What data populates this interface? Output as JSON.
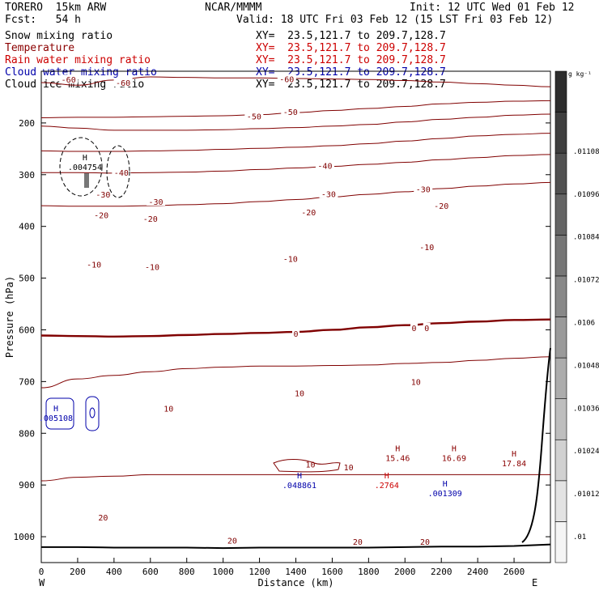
{
  "header": {
    "model": "TORERO  15km ARW",
    "center": "NCAR/MMMM",
    "init": "Init: 12 UTC Wed 01 Feb 12",
    "fcst": "Fcst:   54 h",
    "valid": "Valid: 18 UTC Fri 03 Feb 12 (15 LST Fri 03 Feb 12)"
  },
  "legend": [
    {
      "label": "Snow mixing ratio",
      "xy": "XY=  23.5,121.7 to 209.7,128.7",
      "color": "#000000"
    },
    {
      "label": "Temperature",
      "xy": "XY=  23.5,121.7 to 209.7,128.7",
      "color": "#8b0000"
    },
    {
      "label": "Rain water mixing ratio",
      "xy": "XY=  23.5,121.7 to 209.7,128.7",
      "color": "#cc0000"
    },
    {
      "label": "Cloud water mixing ratio",
      "xy": "XY=  23.5,121.7 to 209.7,128.7",
      "color": "#0000aa"
    },
    {
      "label": "Cloud ice mixing ratio",
      "xy": "XY=  23.5,121.7 to 209.7,128.7",
      "color": "#000000"
    }
  ],
  "chart_data": {
    "type": "contour",
    "xlabel": "Distance (km)",
    "ylabel": "Pressure (hPa)",
    "xlim": [
      0,
      2800
    ],
    "ylim": [
      1050,
      100
    ],
    "x_ticks": [
      0,
      200,
      400,
      600,
      800,
      1000,
      1200,
      1400,
      1600,
      1800,
      2000,
      2200,
      2400,
      2600
    ],
    "y_ticks": [
      200,
      300,
      400,
      500,
      600,
      700,
      800,
      900,
      1000
    ],
    "x_end_labels": {
      "left": "W",
      "right": "E"
    },
    "colorbar": {
      "unit": "g kg⁻¹",
      "ticks": [
        ".01",
        ".01012",
        ".01024",
        ".01036",
        ".01048",
        ".0106",
        ".01072",
        ".01084",
        ".01096",
        ".01108"
      ],
      "range": [
        0.0099,
        0.0112
      ]
    },
    "temperature_contours": [
      {
        "level": -60,
        "p": [
          122,
          127,
          117,
          111,
          112,
          113,
          113,
          114,
          115,
          116,
          118,
          121,
          124,
          127,
          130
        ]
      },
      {
        "level": -50,
        "p": [
          190,
          189,
          189,
          188,
          187,
          186,
          184,
          180,
          176,
          172,
          168,
          163,
          160,
          158,
          157
        ]
      },
      {
        "level": -40,
        "p": [
          206,
          210,
          214,
          214,
          214,
          213,
          211,
          209,
          206,
          203,
          198,
          193,
          189,
          185,
          183
        ]
      },
      {
        "level": -30,
        "p": [
          254,
          255,
          255,
          254,
          253,
          251,
          249,
          247,
          244,
          240,
          235,
          230,
          225,
          222,
          220
        ]
      },
      {
        "level": -20,
        "p": [
          296,
          296,
          297,
          296,
          295,
          293,
          290,
          287,
          284,
          280,
          276,
          271,
          267,
          263,
          261
        ]
      },
      {
        "level": -10,
        "p": [
          360,
          361,
          361,
          360,
          358,
          356,
          352,
          348,
          343,
          338,
          333,
          327,
          322,
          318,
          315
        ]
      },
      {
        "level": 0,
        "p": [
          611,
          612,
          613,
          612,
          610,
          608,
          606,
          604,
          600,
          595,
          591,
          587,
          584,
          581,
          580
        ]
      },
      {
        "level": 10,
        "p": [
          712,
          695,
          688,
          681,
          675,
          672,
          670,
          670,
          669,
          668,
          665,
          663,
          659,
          655,
          652
        ]
      },
      {
        "level": 20,
        "p": [
          892,
          885,
          883,
          880,
          880,
          880,
          880,
          880,
          880,
          880,
          880,
          880,
          880,
          880,
          880
        ]
      }
    ],
    "contour_x": [
      0,
      200,
      400,
      600,
      800,
      1000,
      1200,
      1400,
      1600,
      1800,
      2000,
      2200,
      2400,
      2600,
      2800
    ],
    "contour_labels": [
      {
        "text": "-60",
        "x": 450,
        "p": 122
      },
      {
        "text": "-60",
        "x": 1350,
        "p": 115
      },
      {
        "text": "-60",
        "x": 150,
        "p": 116
      },
      {
        "text": "-50",
        "x": 1170,
        "p": 187
      },
      {
        "text": "-50",
        "x": 1370,
        "p": 178
      },
      {
        "text": "-40",
        "x": 440,
        "p": 296
      },
      {
        "text": "-40",
        "x": 1560,
        "p": 282
      },
      {
        "text": "-30",
        "x": 340,
        "p": 338
      },
      {
        "text": "-30",
        "x": 630,
        "p": 352
      },
      {
        "text": "-30",
        "x": 1580,
        "p": 337
      },
      {
        "text": "-30",
        "x": 2100,
        "p": 328
      },
      {
        "text": "-20",
        "x": 330,
        "p": 378
      },
      {
        "text": "-20",
        "x": 600,
        "p": 385
      },
      {
        "text": "-20",
        "x": 1470,
        "p": 372
      },
      {
        "text": "-20",
        "x": 2200,
        "p": 360
      },
      {
        "text": "-10",
        "x": 290,
        "p": 473
      },
      {
        "text": "-10",
        "x": 610,
        "p": 478
      },
      {
        "text": "-10",
        "x": 1370,
        "p": 462
      },
      {
        "text": "-10",
        "x": 2120,
        "p": 440
      },
      {
        "text": "0",
        "x": 1400,
        "p": 607
      },
      {
        "text": "0",
        "x": 2050,
        "p": 596
      },
      {
        "text": "0",
        "x": 2120,
        "p": 596
      },
      {
        "text": "10",
        "x": 700,
        "p": 752
      },
      {
        "text": "10",
        "x": 1420,
        "p": 722
      },
      {
        "text": "10",
        "x": 2060,
        "p": 700
      },
      {
        "text": "10",
        "x": 1690,
        "p": 865
      },
      {
        "text": "10",
        "x": 1480,
        "p": 860
      },
      {
        "text": "20",
        "x": 340,
        "p": 962
      },
      {
        "text": "20",
        "x": 1050,
        "p": 1007
      },
      {
        "text": "20",
        "x": 1740,
        "p": 1009
      },
      {
        "text": "20",
        "x": 2110,
        "p": 1009
      }
    ],
    "extrema": [
      {
        "label": "H",
        "value": "15.46",
        "x": 1960,
        "p": 835,
        "color": "#8b0000"
      },
      {
        "label": "H",
        "value": "16.69",
        "x": 2270,
        "p": 835,
        "color": "#8b0000"
      },
      {
        "label": "H",
        "value": "17.84",
        "x": 2600,
        "p": 845,
        "color": "#8b0000"
      },
      {
        "label": "H",
        "value": ".048861",
        "x": 1420,
        "p": 887,
        "color": "#0000aa"
      },
      {
        "label": "H",
        "value": ".001309",
        "x": 2220,
        "p": 903,
        "color": "#0000aa"
      },
      {
        "label": "H",
        "value": ".005108",
        "x": 80,
        "p": 757,
        "color": "#0000aa"
      },
      {
        "label": "H",
        "value": ".004754",
        "x": 240,
        "p": 272,
        "color": "#000000"
      },
      {
        "label": "H",
        "value": ".2764",
        "x": 1900,
        "p": 887,
        "color": "#cc0000"
      }
    ],
    "surface_pressure": [
      1020,
      1020,
      1021,
      1021,
      1021,
      1022,
      1021,
      1021,
      1021,
      1021,
      1020,
      1019,
      1019,
      1018,
      1015
    ],
    "mountain_edge": "right",
    "grid": false
  }
}
